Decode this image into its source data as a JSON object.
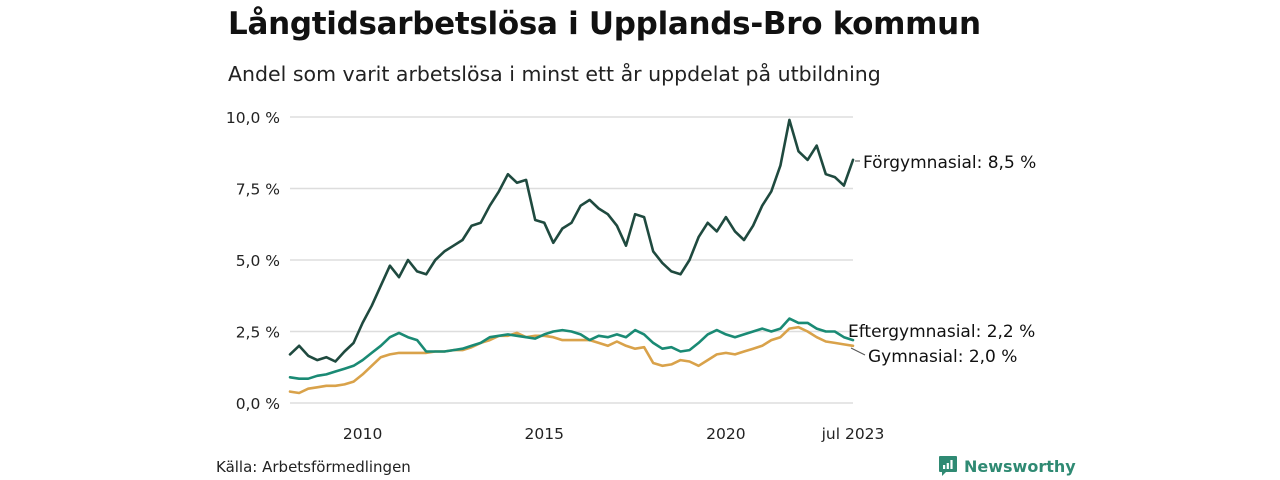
{
  "header": {
    "title": "Långtidsarbetslösa i Upplands-Bro kommun",
    "subtitle": "Andel som varit arbetslösa i minst ett år uppdelat på utbildning"
  },
  "footer": {
    "source": "Källa: Arbetsförmedlingen",
    "brand": "Newsworthy",
    "brand_icon": "bar-chart-speech-bubble-icon",
    "brand_color": "#2f8a73"
  },
  "chart_data": {
    "type": "line",
    "title": "Långtidsarbetslösa i Upplands-Bro kommun",
    "subtitle": "Andel som varit arbetslösa i minst ett år uppdelat på utbildning",
    "xlabel": "",
    "ylabel": "",
    "x_range": [
      2008.0,
      2023.5
    ],
    "ylim": [
      0,
      10
    ],
    "grid": true,
    "legend": "inline-right",
    "y_ticks": [
      {
        "value": 0,
        "label": "0,0 %"
      },
      {
        "value": 2.5,
        "label": "2,5 %"
      },
      {
        "value": 5,
        "label": "5,0 %"
      },
      {
        "value": 7.5,
        "label": "7,5 %"
      },
      {
        "value": 10,
        "label": "10,0 %"
      }
    ],
    "x_ticks": [
      {
        "value": 2010.0,
        "label": "2010"
      },
      {
        "value": 2015.0,
        "label": "2015"
      },
      {
        "value": 2020.0,
        "label": "2020"
      },
      {
        "value": 2023.5,
        "label": "jul 2023"
      }
    ],
    "x": [
      2008.0,
      2008.25,
      2008.5,
      2008.75,
      2009.0,
      2009.25,
      2009.5,
      2009.75,
      2010.0,
      2010.25,
      2010.5,
      2010.75,
      2011.0,
      2011.25,
      2011.5,
      2011.75,
      2012.0,
      2012.25,
      2012.5,
      2012.75,
      2013.0,
      2013.25,
      2013.5,
      2013.75,
      2014.0,
      2014.25,
      2014.5,
      2014.75,
      2015.0,
      2015.25,
      2015.5,
      2015.75,
      2016.0,
      2016.25,
      2016.5,
      2016.75,
      2017.0,
      2017.25,
      2017.5,
      2017.75,
      2018.0,
      2018.25,
      2018.5,
      2018.75,
      2019.0,
      2019.25,
      2019.5,
      2019.75,
      2020.0,
      2020.25,
      2020.5,
      2020.75,
      2021.0,
      2021.25,
      2021.5,
      2021.75,
      2022.0,
      2022.25,
      2022.5,
      2022.75,
      2023.0,
      2023.25,
      2023.5
    ],
    "series": [
      {
        "name": "Förgymnasial",
        "label": "Förgymnasial: 8,5 %",
        "last_value": 8.5,
        "color": "#1f4a3f",
        "values": [
          1.7,
          2.0,
          1.65,
          1.5,
          1.6,
          1.45,
          1.8,
          2.1,
          2.8,
          3.4,
          4.1,
          4.8,
          4.4,
          5.0,
          4.6,
          4.5,
          5.0,
          5.3,
          5.5,
          5.7,
          6.2,
          6.3,
          6.9,
          7.4,
          8.0,
          7.7,
          7.8,
          6.4,
          6.3,
          5.6,
          6.1,
          6.3,
          6.9,
          7.1,
          6.8,
          6.6,
          6.2,
          5.5,
          6.6,
          6.5,
          5.3,
          4.9,
          4.6,
          4.5,
          5.0,
          5.8,
          6.3,
          6.0,
          6.5,
          6.0,
          5.7,
          6.2,
          6.9,
          7.4,
          8.3,
          9.9,
          8.8,
          8.5,
          9.0,
          8.0,
          7.9,
          7.6,
          8.5
        ]
      },
      {
        "name": "Eftergymnasial",
        "label": "Eftergymnasial: 2,2 %",
        "last_value": 2.2,
        "color": "#1a8a74",
        "values": [
          0.9,
          0.85,
          0.85,
          0.95,
          1.0,
          1.1,
          1.2,
          1.3,
          1.5,
          1.75,
          2.0,
          2.3,
          2.45,
          2.3,
          2.2,
          1.8,
          1.8,
          1.8,
          1.85,
          1.9,
          2.0,
          2.1,
          2.3,
          2.35,
          2.4,
          2.35,
          2.3,
          2.25,
          2.4,
          2.5,
          2.55,
          2.5,
          2.4,
          2.2,
          2.35,
          2.3,
          2.4,
          2.3,
          2.55,
          2.4,
          2.1,
          1.9,
          1.95,
          1.8,
          1.85,
          2.1,
          2.4,
          2.55,
          2.4,
          2.3,
          2.4,
          2.5,
          2.6,
          2.5,
          2.6,
          2.95,
          2.8,
          2.8,
          2.6,
          2.5,
          2.5,
          2.3,
          2.2
        ]
      },
      {
        "name": "Gymnasial",
        "label": "Gymnasial: 2,0 %",
        "last_value": 2.0,
        "color": "#d9a24a",
        "values": [
          0.4,
          0.35,
          0.5,
          0.55,
          0.6,
          0.6,
          0.65,
          0.75,
          1.0,
          1.3,
          1.6,
          1.7,
          1.75,
          1.75,
          1.75,
          1.75,
          1.8,
          1.8,
          1.85,
          1.85,
          1.95,
          2.1,
          2.2,
          2.35,
          2.35,
          2.45,
          2.3,
          2.35,
          2.35,
          2.3,
          2.2,
          2.2,
          2.2,
          2.2,
          2.1,
          2.0,
          2.15,
          2.0,
          1.9,
          1.95,
          1.4,
          1.3,
          1.35,
          1.5,
          1.45,
          1.3,
          1.5,
          1.7,
          1.75,
          1.7,
          1.8,
          1.9,
          2.0,
          2.2,
          2.3,
          2.6,
          2.65,
          2.5,
          2.3,
          2.15,
          2.1,
          2.05,
          2.0
        ]
      }
    ]
  }
}
